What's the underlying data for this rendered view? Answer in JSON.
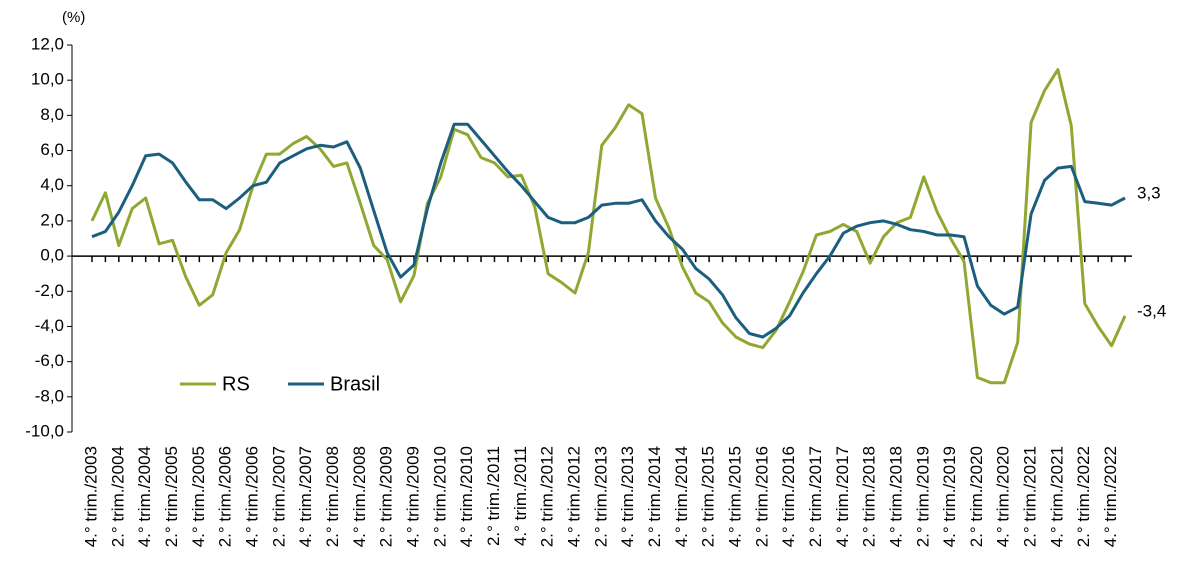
{
  "chart_data": {
    "type": "line",
    "y_label": "(%)",
    "categories": [
      "4.° trim./2003",
      null,
      "2.° trim./2004",
      null,
      "4.° trim./2004",
      null,
      "2.° trim./2005",
      null,
      "4.° trim./2005",
      null,
      "2.° trim./2006",
      null,
      "4.° trim./2006",
      null,
      "2.° trim./2007",
      null,
      "4.° trim./2007",
      null,
      "2.° trim./2008",
      null,
      "4.° trim./2008",
      null,
      "2.° trim./2009",
      null,
      "4.° trim./2009",
      null,
      "2.° trim./2010",
      null,
      "4.° trim./2010",
      null,
      "2.° trim./2011",
      null,
      "4.° trim./2011",
      null,
      "2.° trim./2012",
      null,
      "4.° trim./2012",
      null,
      "2.° trim./2013",
      null,
      "4.° trim./2013",
      null,
      "2.° trim./2014",
      null,
      "4.° trim./2014",
      null,
      "2.° trim./2015",
      null,
      "4.° trim./2015",
      null,
      "2.° trim./2016",
      null,
      "4.° trim./2016",
      null,
      "2.° trim./2017",
      null,
      "4.° trim./2017",
      null,
      "2.° trim./2018",
      null,
      "4.° trim./2018",
      null,
      "2.° trim./2019",
      null,
      "4.° trim./2019",
      null,
      "2.° trim./2020",
      null,
      "4.° trim./2020",
      null,
      "2.° trim./2021",
      null,
      "4.° trim./2021",
      null,
      "2.° trim./2022",
      null,
      "4.° trim./2022",
      null
    ],
    "series": [
      {
        "name": "RS",
        "color": "#8fa832",
        "values": [
          2.0,
          3.6,
          0.6,
          2.7,
          3.3,
          0.7,
          0.9,
          -1.2,
          -2.8,
          -2.2,
          0.2,
          1.5,
          4.0,
          5.8,
          5.8,
          6.4,
          6.8,
          6.1,
          5.1,
          5.3,
          3.0,
          0.6,
          -0.2,
          -2.6,
          -1.1,
          3.0,
          4.5,
          7.2,
          6.9,
          5.6,
          5.3,
          4.5,
          4.6,
          2.8,
          -1.0,
          -1.5,
          -2.1,
          0.2,
          6.3,
          7.3,
          8.6,
          8.1,
          3.3,
          1.6,
          -0.6,
          -2.1,
          -2.6,
          -3.8,
          -4.6,
          -5.0,
          -5.2,
          -4.2,
          -2.6,
          -0.9,
          1.2,
          1.4,
          1.8,
          1.4,
          -0.4,
          1.1,
          1.9,
          2.2,
          4.5,
          2.5,
          1.0,
          -0.3,
          -6.9,
          -7.2,
          -7.2,
          -4.9,
          7.6,
          9.4,
          10.6,
          7.4,
          -2.7,
          -4.0,
          -5.1,
          -3.4
        ]
      },
      {
        "name": "Brasil",
        "color": "#1b5e7e",
        "values": [
          1.1,
          1.4,
          2.5,
          4.0,
          5.7,
          5.8,
          5.3,
          4.2,
          3.2,
          3.2,
          2.7,
          3.3,
          4.0,
          4.2,
          5.3,
          5.7,
          6.1,
          6.3,
          6.2,
          6.5,
          5.0,
          2.6,
          0.2,
          -1.2,
          -0.5,
          2.7,
          5.3,
          7.5,
          7.5,
          6.6,
          5.7,
          4.8,
          4.0,
          3.1,
          2.2,
          1.9,
          1.9,
          2.2,
          2.9,
          3.0,
          3.0,
          3.2,
          2.0,
          1.1,
          0.4,
          -0.7,
          -1.3,
          -2.2,
          -3.5,
          -4.4,
          -4.6,
          -4.1,
          -3.4,
          -2.1,
          -1.0,
          0.0,
          1.3,
          1.7,
          1.9,
          2.0,
          1.8,
          1.5,
          1.4,
          1.2,
          1.2,
          1.1,
          -1.7,
          -2.8,
          -3.3,
          -2.9,
          2.4,
          4.3,
          5.0,
          5.1,
          3.1,
          3.0,
          2.9,
          3.3
        ]
      }
    ],
    "annotations": [
      "-3,4",
      "3,3"
    ],
    "ylim": [
      -10,
      12
    ],
    "yticks": [
      {
        "value": -10,
        "label": "-10,0"
      },
      {
        "value": -8,
        "label": "-8,0"
      },
      {
        "value": -6,
        "label": "-6,0"
      },
      {
        "value": -4,
        "label": "-4,0"
      },
      {
        "value": -2,
        "label": "-2,0"
      },
      {
        "value": 0,
        "label": "0,0"
      },
      {
        "value": 2,
        "label": "2,0"
      },
      {
        "value": 4,
        "label": "4,0"
      },
      {
        "value": 6,
        "label": "6,0"
      },
      {
        "value": 8,
        "label": "8,0"
      },
      {
        "value": 10,
        "label": "10,0"
      },
      {
        "value": 12,
        "label": "12,0"
      }
    ],
    "legend": "lower left"
  }
}
